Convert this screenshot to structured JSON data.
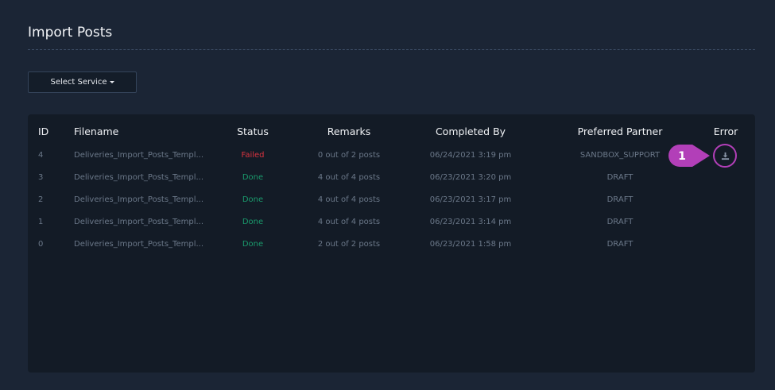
{
  "page": {
    "title": "Import Posts"
  },
  "toolbar": {
    "select_service_label": "Select Service"
  },
  "table": {
    "columns": [
      "ID",
      "Filename",
      "Status",
      "Remarks",
      "Completed By",
      "Preferred Partner",
      "Error"
    ],
    "rows": [
      {
        "id": "4",
        "filename": "Deliveries_Import_Posts_Templ...",
        "status": "Failed",
        "remarks": "0 out of 2 posts",
        "completed_by": "06/24/2021 3:19 pm",
        "partner": "SANDBOX_SUPPORT",
        "error": "download-icon"
      },
      {
        "id": "3",
        "filename": "Deliveries_Import_Posts_Templ...",
        "status": "Done",
        "remarks": "4 out of 4 posts",
        "completed_by": "06/23/2021 3:20 pm",
        "partner": "DRAFT"
      },
      {
        "id": "2",
        "filename": "Deliveries_Import_Posts_Templ...",
        "status": "Done",
        "remarks": "4 out of 4 posts",
        "completed_by": "06/23/2021 3:17 pm",
        "partner": "DRAFT"
      },
      {
        "id": "1",
        "filename": "Deliveries_Import_Posts_Templ...",
        "status": "Done",
        "remarks": "4 out of 4 posts",
        "completed_by": "06/23/2021 3:14 pm",
        "partner": "DRAFT"
      },
      {
        "id": "0",
        "filename": "Deliveries_Import_Posts_Templ...",
        "status": "Done",
        "remarks": "2 out of 2 posts",
        "completed_by": "06/23/2021 1:58 pm",
        "partner": "DRAFT"
      }
    ]
  },
  "annotation": {
    "step": "1",
    "color": "#b23fb8"
  },
  "colors": {
    "background": "#1b2535",
    "panel": "#131b26",
    "failed": "#d9333f",
    "done": "#1a9a6c"
  }
}
